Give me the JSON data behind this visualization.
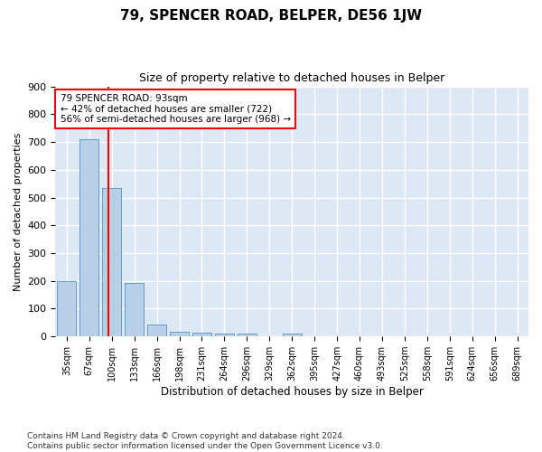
{
  "title": "79, SPENCER ROAD, BELPER, DE56 1JW",
  "subtitle": "Size of property relative to detached houses in Belper",
  "xlabel": "Distribution of detached houses by size in Belper",
  "ylabel": "Number of detached properties",
  "footer": "Contains HM Land Registry data © Crown copyright and database right 2024.\nContains public sector information licensed under the Open Government Licence v3.0.",
  "categories": [
    "35sqm",
    "67sqm",
    "100sqm",
    "133sqm",
    "166sqm",
    "198sqm",
    "231sqm",
    "264sqm",
    "296sqm",
    "329sqm",
    "362sqm",
    "395sqm",
    "427sqm",
    "460sqm",
    "493sqm",
    "525sqm",
    "558sqm",
    "591sqm",
    "624sqm",
    "656sqm",
    "689sqm"
  ],
  "values": [
    200,
    711,
    535,
    192,
    42,
    17,
    15,
    12,
    10,
    0,
    9,
    0,
    0,
    0,
    0,
    0,
    0,
    0,
    0,
    0,
    0
  ],
  "bar_color": "#b8cfe8",
  "bar_edge_color": "#6699cc",
  "property_line_x": 1.85,
  "property_line_color": "red",
  "annotation_text": "79 SPENCER ROAD: 93sqm\n← 42% of detached houses are smaller (722)\n56% of semi-detached houses are larger (968) →",
  "annotation_box_color": "white",
  "annotation_box_edge_color": "red",
  "ylim": [
    0,
    900
  ],
  "yticks": [
    0,
    100,
    200,
    300,
    400,
    500,
    600,
    700,
    800,
    900
  ],
  "background_color": "#ffffff",
  "plot_background_color": "#dde8f5",
  "grid_color": "#ffffff",
  "title_fontsize": 11,
  "subtitle_fontsize": 9,
  "footer_fontsize": 6.5
}
